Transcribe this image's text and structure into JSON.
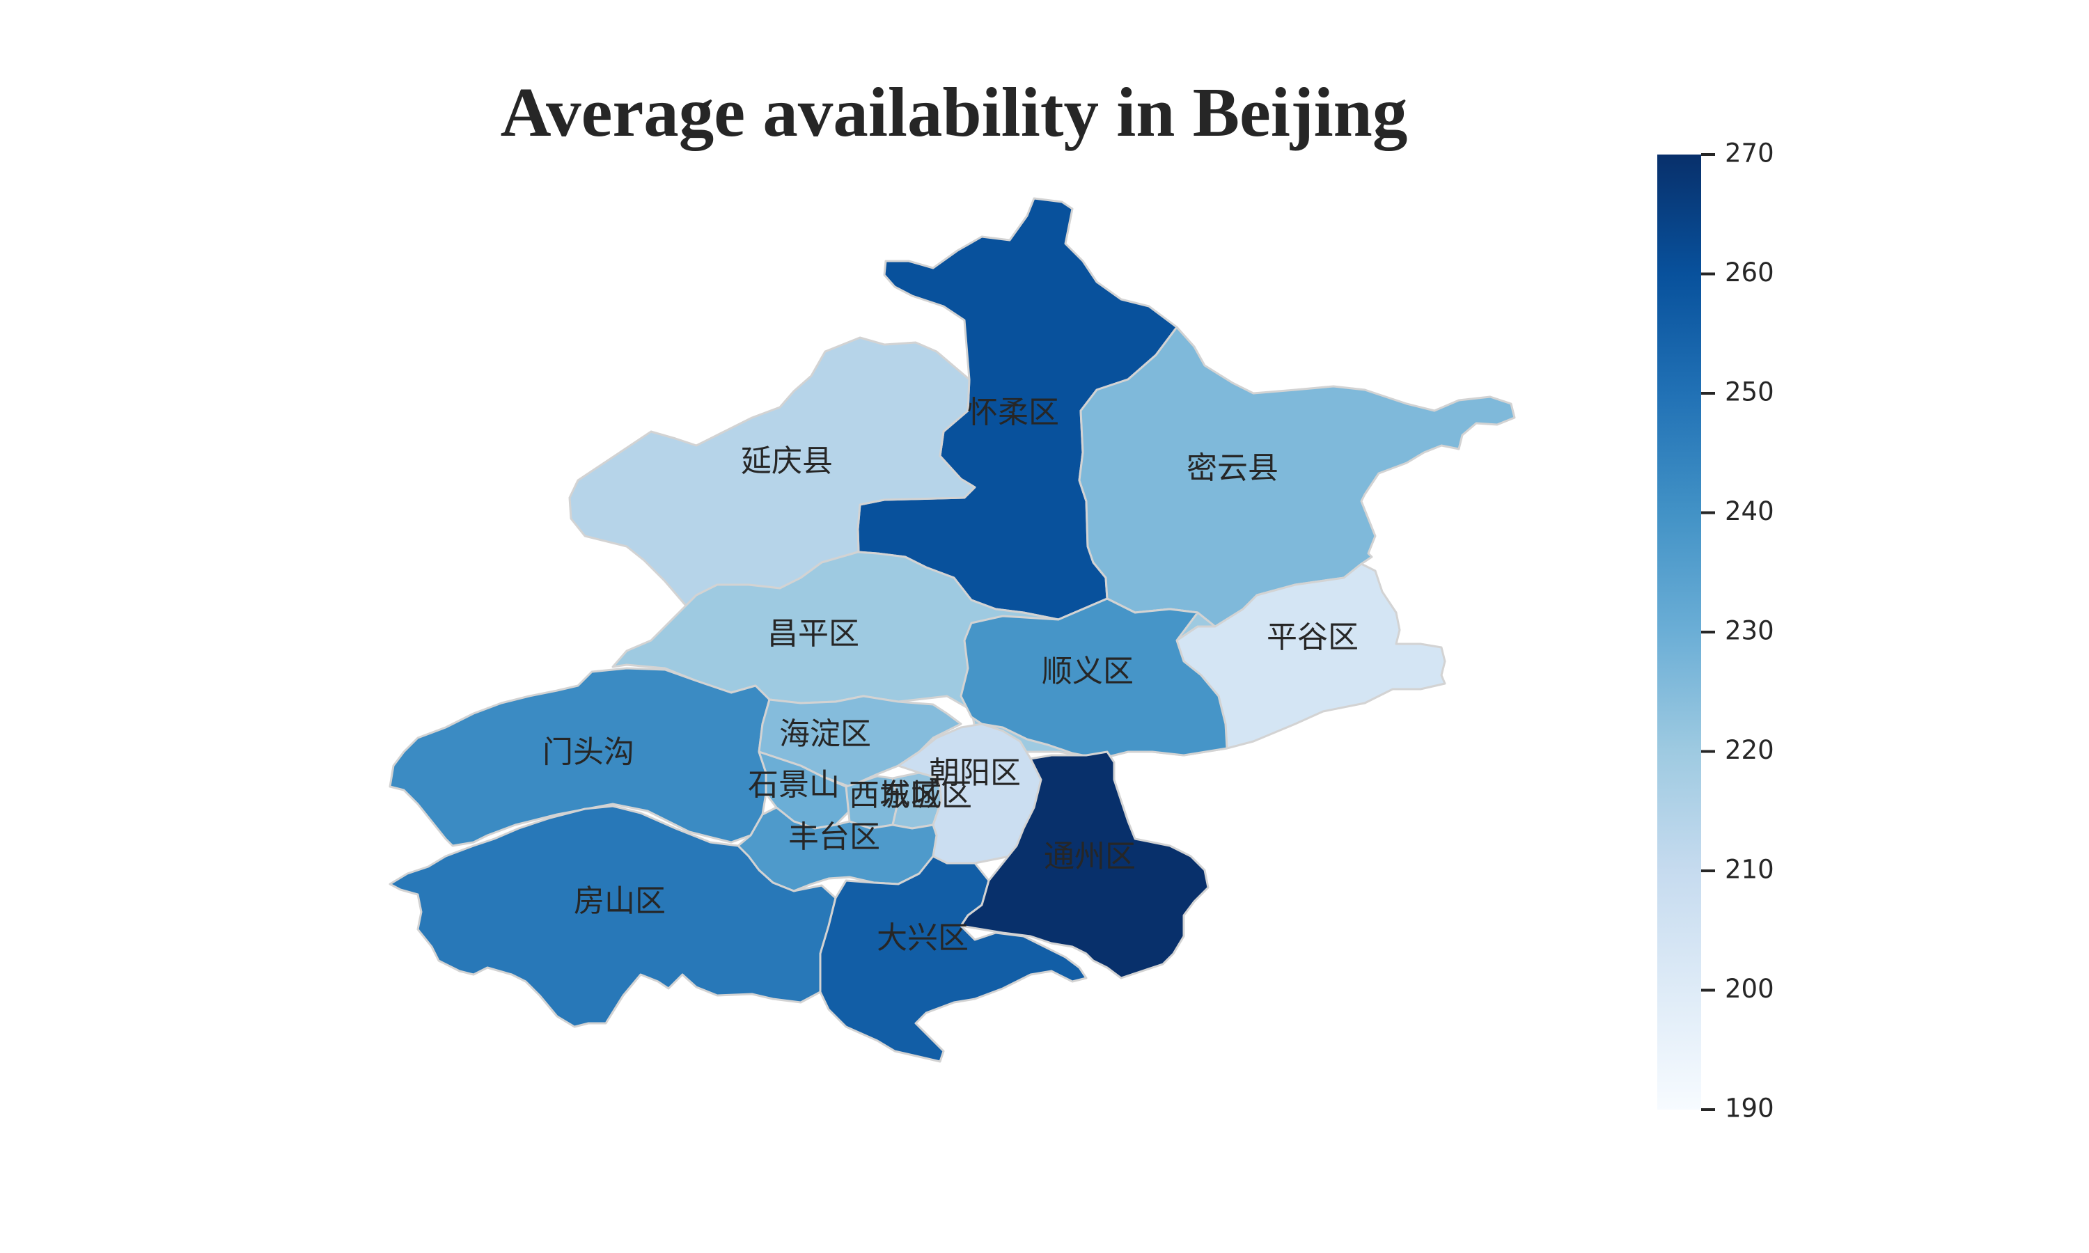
{
  "title": "Average availability in Beijing",
  "map_data": {
    "type": "choropleth",
    "region": "Beijing",
    "colormap": "Blues",
    "value_range": [
      190,
      270
    ],
    "districts": [
      {
        "id": "huairou",
        "name": "怀柔区",
        "value": 260
      },
      {
        "id": "yanqing",
        "name": "延庆县",
        "value": 214
      },
      {
        "id": "miyun",
        "name": "密云县",
        "value": 226
      },
      {
        "id": "changping",
        "name": "昌平区",
        "value": 220
      },
      {
        "id": "pinggu",
        "name": "平谷区",
        "value": 204
      },
      {
        "id": "shunyi",
        "name": "顺义区",
        "value": 239
      },
      {
        "id": "mentougou",
        "name": "门头沟",
        "value": 242
      },
      {
        "id": "haidian",
        "name": "海淀区",
        "value": 225
      },
      {
        "id": "shijingshan",
        "name": "石景山",
        "value": 230
      },
      {
        "id": "xicheng",
        "name": "西城区",
        "value": 226
      },
      {
        "id": "dongcheng",
        "name": "东城区",
        "value": 222
      },
      {
        "id": "chaoyang",
        "name": "朝阳区",
        "value": 208
      },
      {
        "id": "fengtai",
        "name": "丰台区",
        "value": 237
      },
      {
        "id": "fangshan",
        "name": "房山区",
        "value": 248
      },
      {
        "id": "daxing",
        "name": "大兴区",
        "value": 256
      },
      {
        "id": "tongzhou",
        "name": "通州区",
        "value": 270
      }
    ]
  },
  "colorbar": {
    "ticks": [
      "270",
      "260",
      "250",
      "240",
      "230",
      "220",
      "210",
      "200",
      "190"
    ],
    "stops": [
      "#f7fbff",
      "#deebf7",
      "#c6dbef",
      "#9ecae1",
      "#6baed6",
      "#4292c6",
      "#2171b5",
      "#08519c",
      "#08306b"
    ]
  }
}
